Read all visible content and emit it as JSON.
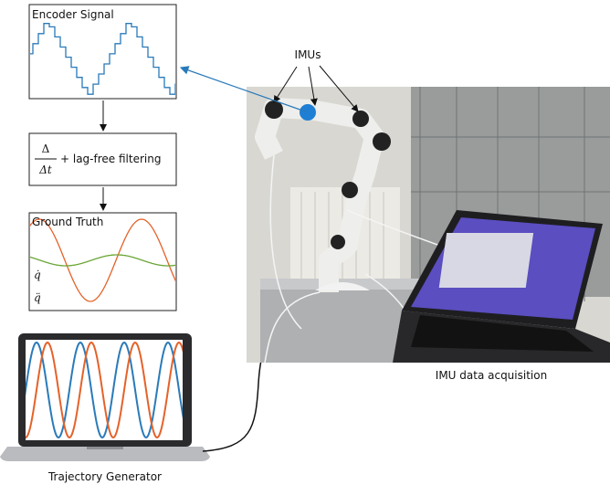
{
  "nodes": [
    {
      "label": "Encoder Signal"
    },
    {
      "numerator": "Δ",
      "denominator": "Δt",
      "label": "+ lag-free filtering"
    },
    {
      "label": "Ground Truth",
      "legend": [
        "q̇",
        "q̈"
      ]
    },
    {
      "label": "Trajectory Generator"
    }
  ],
  "photo": {
    "annotation": "IMUs",
    "caption": "IMU data acquisition"
  }
}
